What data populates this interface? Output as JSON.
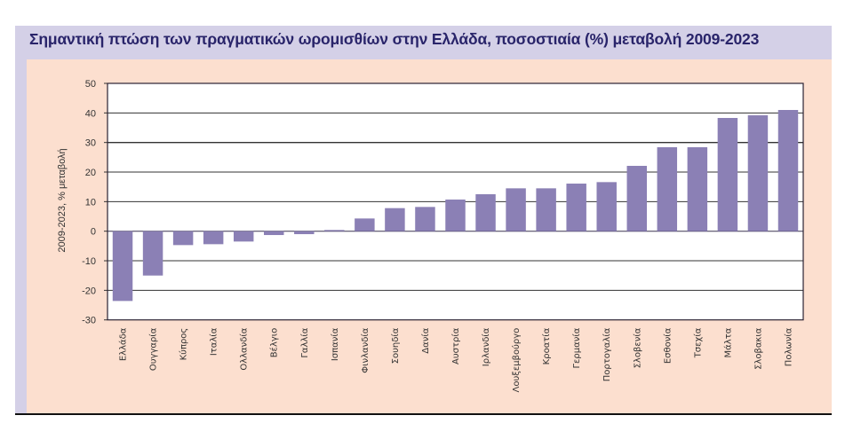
{
  "colors": {
    "frame": "#d4d0e7",
    "panel": "#fcdfcf",
    "title": "#29246a",
    "bar": "#8b80b5",
    "grid": "#222222"
  },
  "chart_data": {
    "type": "bar",
    "title": "Σημαντική πτώση των πραγματικών ωρομισθίων στην Ελλάδα, ποσοστιαία (%) μεταβολή 2009-2023",
    "xlabel": "",
    "ylabel": "2009-2023, % μεταβολή",
    "ylim": [
      -30,
      50
    ],
    "yticks": [
      50,
      40,
      30,
      20,
      10,
      0,
      -10,
      -20,
      -30
    ],
    "grid": true,
    "categories": [
      "Ελλάδα",
      "Ουγγαρία",
      "Κύπρος",
      "Ιταλία",
      "Ολλανδία",
      "Βέλγιο",
      "Γαλλία",
      "Ισπανία",
      "Φινλανδία",
      "Σουηδία",
      "Δανία",
      "Αυστρία",
      "Ιρλανδία",
      "Λουξεμβούργο",
      "Κροατία",
      "Γερμανία",
      "Πορτογαλία",
      "Σλοβενία",
      "Εσθονία",
      "Τσεχία",
      "Μάλτα",
      "Σλοβακια",
      "Πολωνία"
    ],
    "values": [
      -23.6,
      -15.0,
      -4.7,
      -4.4,
      -3.5,
      -1.3,
      -1.0,
      0.4,
      4.3,
      7.8,
      8.2,
      10.7,
      12.5,
      14.5,
      14.5,
      16.1,
      16.6,
      22.1,
      28.4,
      28.4,
      38.3,
      39.2,
      41.0
    ]
  }
}
